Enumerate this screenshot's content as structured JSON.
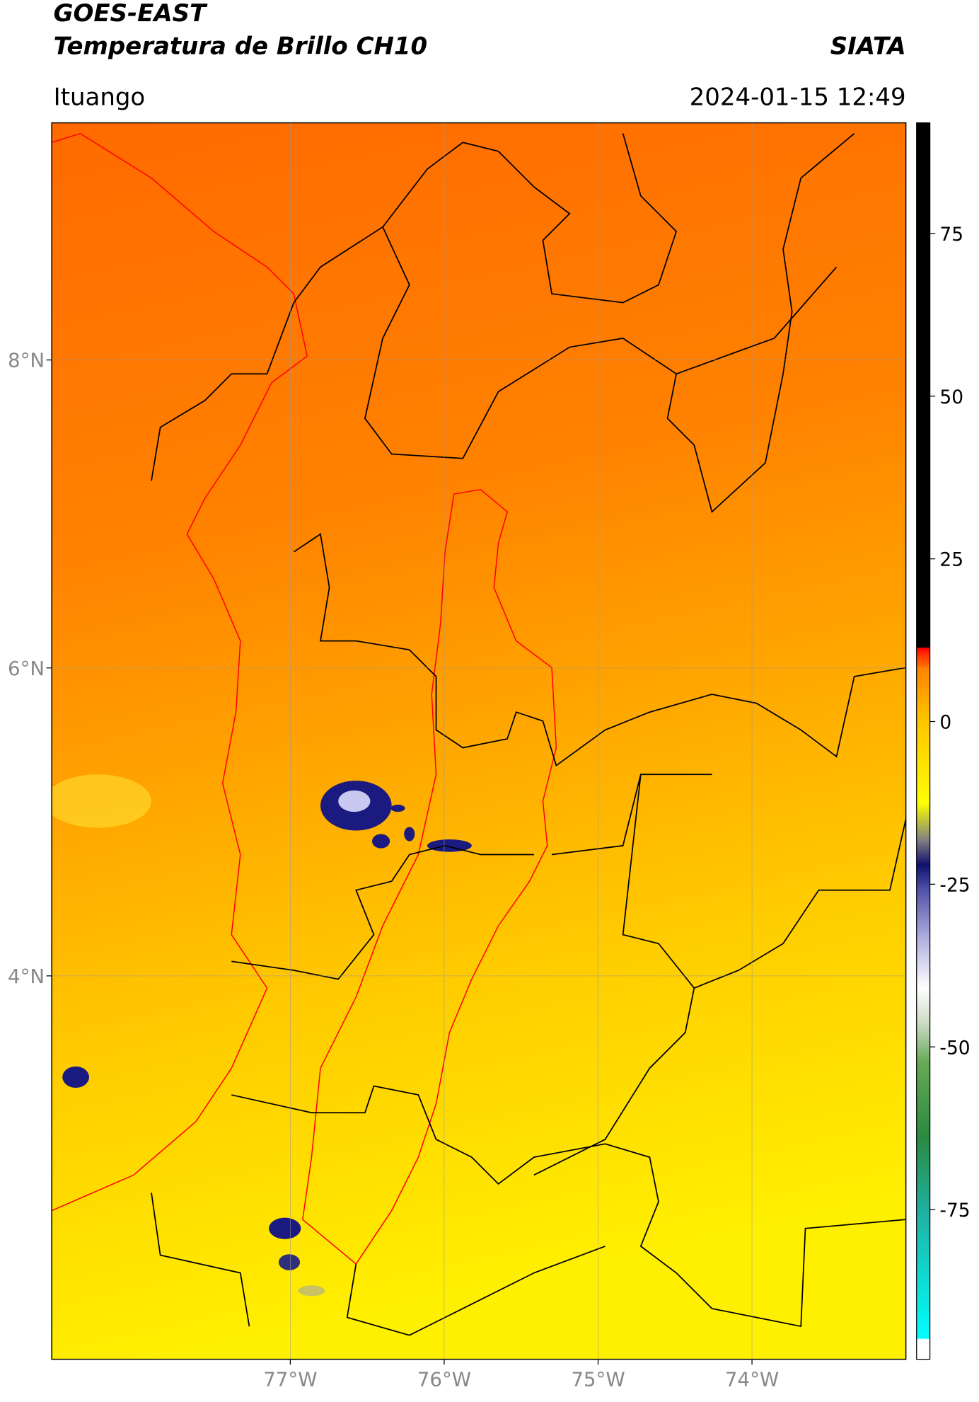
{
  "header": {
    "title_line1": "GOES-EAST",
    "title_line2": "Temperatura de Brillo CH10",
    "organization": "SIATA",
    "location": "Ituango",
    "datetime": "2024-01-15 12:49"
  },
  "map": {
    "lonlim": [
      -78.55,
      -73.0
    ],
    "latlim": [
      1.51,
      9.54
    ],
    "xticks": [
      {
        "value": -77,
        "label": "77°W"
      },
      {
        "value": -76,
        "label": "76°W"
      },
      {
        "value": -75,
        "label": "75°W"
      },
      {
        "value": -74,
        "label": "74°W"
      }
    ],
    "yticks": [
      {
        "value": 8,
        "label": "8°N"
      },
      {
        "value": 6,
        "label": "6°N"
      },
      {
        "value": 4,
        "label": "4°N"
      }
    ]
  },
  "colorbar": {
    "lim": [
      -98,
      92
    ],
    "ticks": [
      75,
      50,
      25,
      0,
      -25,
      -50,
      -75
    ]
  }
}
